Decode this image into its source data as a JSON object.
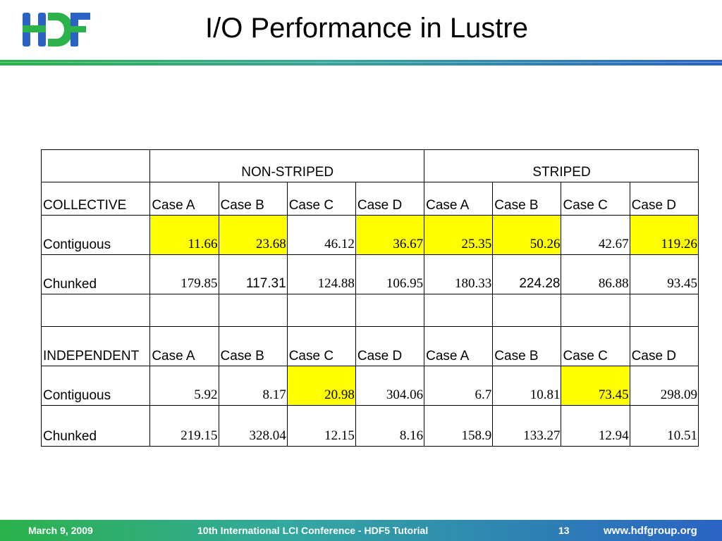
{
  "slide": {
    "title": "I/O Performance in Lustre",
    "logo_text": "HDF"
  },
  "colors": {
    "highlight": "#ffff00",
    "accent_green": "#2bb24a",
    "accent_blue": "#2a63c4"
  },
  "table": {
    "header": {
      "non_striped": "NON-STRIPED",
      "striped": "STRIPED"
    },
    "collective": {
      "label": "COLLECTIVE",
      "cases": [
        "Case A",
        "Case B",
        "Case C",
        "Case D",
        "Case A",
        "Case B",
        "Case C",
        "Case D"
      ],
      "contiguous": {
        "label": "Contiguous",
        "values": [
          "11.66",
          "23.68",
          "46.12",
          "36.67",
          "25.35",
          "50.26",
          "42.67",
          "119.26"
        ],
        "highlighted": [
          true,
          true,
          false,
          true,
          true,
          true,
          false,
          true
        ]
      },
      "chunked": {
        "label": "Chunked",
        "values": [
          "179.85",
          "117.31",
          "124.88",
          "106.95",
          "180.33",
          "224.28",
          "86.88",
          "93.45"
        ],
        "highlighted": [
          false,
          false,
          false,
          false,
          false,
          false,
          false,
          false
        ]
      }
    },
    "independent": {
      "label": "INDEPENDENT",
      "cases": [
        "Case A",
        "Case B",
        "Case C",
        "Case D",
        "Case A",
        "Case B",
        "Case C",
        "Case D"
      ],
      "contiguous": {
        "label": "Contiguous",
        "values": [
          "5.92",
          "8.17",
          "20.98",
          "304.06",
          "6.7",
          "10.81",
          "73.45",
          "298.09"
        ],
        "highlighted": [
          false,
          false,
          true,
          false,
          false,
          false,
          true,
          false
        ]
      },
      "chunked": {
        "label": "Chunked",
        "values": [
          "219.15",
          "328.04",
          "12.15",
          "8.16",
          "158.9",
          "133.27",
          "12.94",
          "10.51"
        ],
        "highlighted": [
          false,
          false,
          false,
          false,
          false,
          false,
          false,
          false
        ]
      }
    }
  },
  "footer": {
    "date": "March 9, 2009",
    "conference": "10th International LCI Conference - HDF5 Tutorial",
    "page": "13",
    "url": "www.hdfgroup.org"
  }
}
